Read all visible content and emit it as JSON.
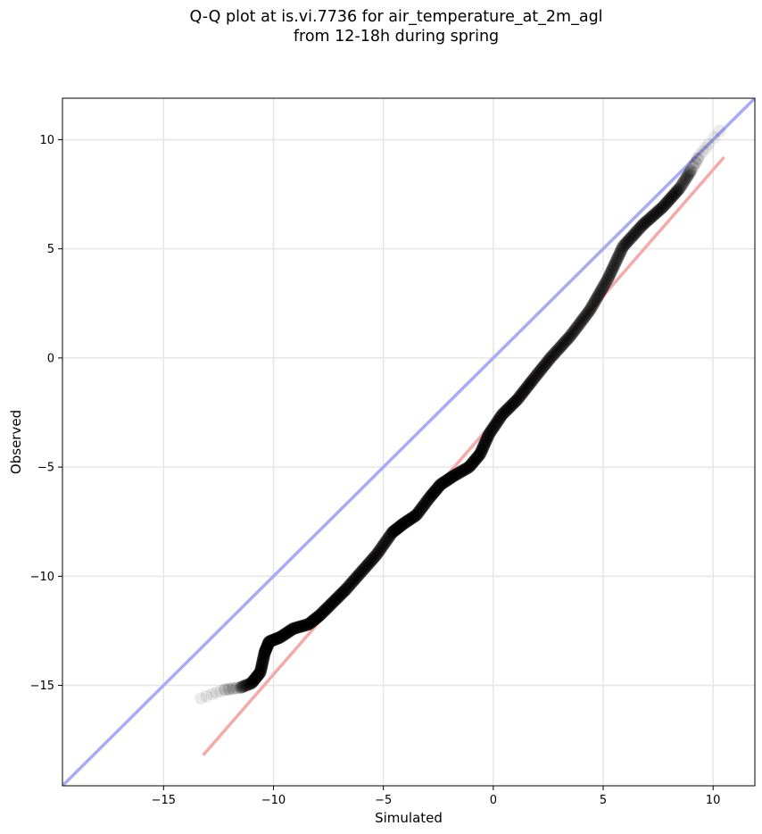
{
  "chart_data": {
    "type": "scatter",
    "title": "Q-Q plot at is.vi.7736 for air_temperature_at_2m_agl",
    "subtitle": "from 12-18h during spring",
    "xlabel": "Simulated",
    "ylabel": "Observed",
    "xlim": [
      -19.6,
      11.9
    ],
    "ylim": [
      -19.6,
      11.9
    ],
    "x_ticks": [
      -15,
      -10,
      -5,
      0,
      5,
      10
    ],
    "y_ticks": [
      -15,
      -10,
      -5,
      0,
      5,
      10
    ],
    "x_tick_labels": [
      "−15",
      "−10",
      "−5",
      "0",
      "5",
      "10"
    ],
    "y_tick_labels": [
      "−15",
      "−10",
      "−5",
      "0",
      "5",
      "10"
    ],
    "grid": true,
    "identity_line": {
      "color": "#aaaaf5",
      "from": [
        -19.6,
        -19.6
      ],
      "to": [
        11.9,
        11.9
      ]
    },
    "fit_line": {
      "color": "#f5aaaa",
      "from": [
        -13.2,
        -18.2
      ],
      "to": [
        10.5,
        9.2
      ]
    },
    "quantile_curve": [
      [
        -13.3,
        -15.6
      ],
      [
        -12.8,
        -15.4
      ],
      [
        -12.2,
        -15.2
      ],
      [
        -11.5,
        -15.1
      ],
      [
        -11.0,
        -14.9
      ],
      [
        -10.6,
        -14.4
      ],
      [
        -10.4,
        -13.5
      ],
      [
        -10.2,
        -13.0
      ],
      [
        -9.7,
        -12.8
      ],
      [
        -9.1,
        -12.4
      ],
      [
        -8.4,
        -12.2
      ],
      [
        -7.9,
        -11.8
      ],
      [
        -7.3,
        -11.2
      ],
      [
        -6.7,
        -10.6
      ],
      [
        -6.0,
        -9.8
      ],
      [
        -5.3,
        -9.0
      ],
      [
        -4.6,
        -8.0
      ],
      [
        -4.1,
        -7.6
      ],
      [
        -3.5,
        -7.2
      ],
      [
        -2.9,
        -6.4
      ],
      [
        -2.4,
        -5.8
      ],
      [
        -1.8,
        -5.4
      ],
      [
        -1.1,
        -5.0
      ],
      [
        -0.6,
        -4.4
      ],
      [
        -0.2,
        -3.5
      ],
      [
        0.4,
        -2.6
      ],
      [
        1.1,
        -1.9
      ],
      [
        1.8,
        -1.0
      ],
      [
        2.6,
        0.0
      ],
      [
        3.5,
        1.0
      ],
      [
        4.4,
        2.2
      ],
      [
        5.2,
        3.6
      ],
      [
        5.9,
        5.1
      ],
      [
        6.8,
        6.1
      ],
      [
        7.7,
        6.9
      ],
      [
        8.5,
        7.8
      ],
      [
        9.0,
        8.6
      ],
      [
        9.4,
        9.3
      ],
      [
        9.8,
        9.8
      ],
      [
        10.3,
        10.4
      ]
    ],
    "marker_color": "#000000"
  }
}
